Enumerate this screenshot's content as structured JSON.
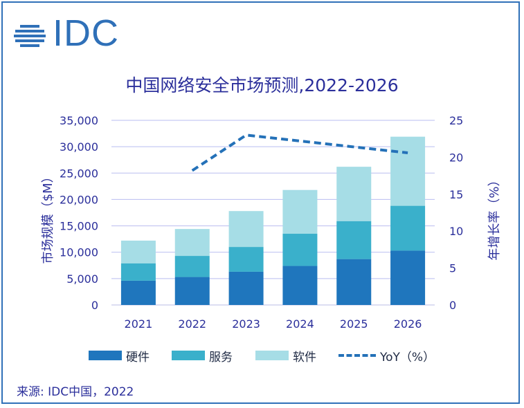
{
  "logo": {
    "text": "IDC",
    "color": "#2f70b8"
  },
  "chart_data": {
    "type": "bar",
    "stacked": true,
    "title": "中国网络安全市场预测,2022-2026",
    "categories": [
      "2021",
      "2022",
      "2023",
      "2024",
      "2025",
      "2026"
    ],
    "series": [
      {
        "name": "硬件",
        "color": "#1f76bd",
        "values": [
          4600,
          5300,
          6300,
          7400,
          8700,
          10300
        ]
      },
      {
        "name": "服务",
        "color": "#3ab0cb",
        "values": [
          3300,
          4000,
          4700,
          6100,
          7200,
          8500
        ]
      },
      {
        "name": "软件",
        "color": "#a6dde6",
        "values": [
          4300,
          5100,
          6800,
          8300,
          10300,
          13100
        ]
      }
    ],
    "line_series": {
      "name": "YoY（%）",
      "color": "#2471b8",
      "axis": "right",
      "values": [
        null,
        18.2,
        23.0,
        22.2,
        21.4,
        20.6
      ]
    },
    "ylabel": "市场规模（$M）",
    "y2label": "年增长率（%）",
    "ylim": [
      0,
      35000
    ],
    "yticks": [
      "0",
      "5,000",
      "10,000",
      "15,000",
      "20,000",
      "25,000",
      "30,000",
      "35,000"
    ],
    "y2lim": [
      0,
      25
    ],
    "y2ticks": [
      "0",
      "5",
      "10",
      "15",
      "20",
      "25"
    ],
    "grid": true,
    "legend_position": "bottom"
  },
  "source": "来源: IDC中国，2022"
}
